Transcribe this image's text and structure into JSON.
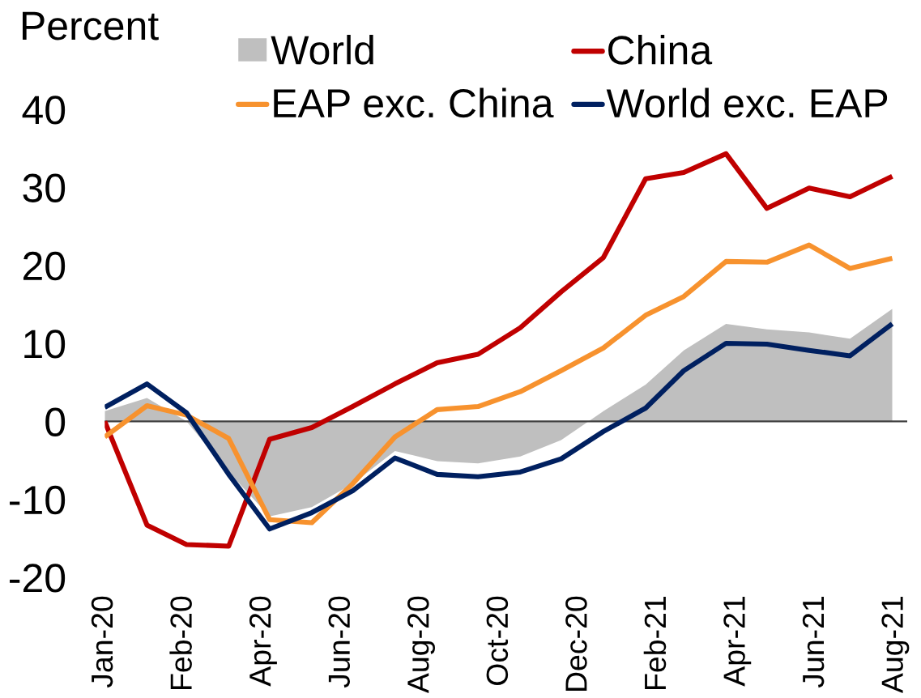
{
  "chart_data": {
    "type": "line",
    "ylabel": "Percent",
    "x": [
      "2020-01",
      "2020-02",
      "2020-03",
      "2020-04",
      "2020-05",
      "2020-06",
      "2020-07",
      "2020-08",
      "2020-09",
      "2020-10",
      "2020-11",
      "2020-12",
      "2021-01",
      "2021-02",
      "2021-03",
      "2021-04",
      "2021-05",
      "2021-06",
      "2021-07",
      "2021-08"
    ],
    "series": [
      {
        "name": "World",
        "type": "area",
        "color": "#bfbfbf",
        "values": [
          1.3,
          3.0,
          0,
          -6.5,
          -12.2,
          -11.0,
          -8.0,
          -3.8,
          -5.1,
          -5.4,
          -4.5,
          -2.4,
          1.3,
          4.7,
          9.1,
          12.5,
          11.8,
          11.4,
          10.6,
          14.4
        ]
      },
      {
        "name": "China",
        "color": "#c00000",
        "values": [
          0,
          -13.3,
          -15.8,
          -16.0,
          -2.3,
          -0.8,
          1.9,
          4.8,
          7.5,
          8.6,
          12.0,
          16.6,
          21.0,
          31.1,
          31.9,
          34.3,
          27.3,
          29.9,
          28.8,
          31.4
        ]
      },
      {
        "name": "EAP exc. China",
        "color": "#f7922e",
        "values": [
          -2.0,
          2.0,
          0.8,
          -2.2,
          -12.6,
          -13.0,
          -8.0,
          -2.0,
          1.5,
          1.9,
          3.8,
          6.5,
          9.4,
          13.6,
          16.0,
          20.5,
          20.4,
          22.6,
          19.6,
          20.9
        ]
      },
      {
        "name": "World exc. EAP",
        "color": "#002060",
        "values": [
          1.8,
          4.8,
          1.1,
          -6.8,
          -13.8,
          -11.7,
          -8.9,
          -4.7,
          -6.8,
          -7.1,
          -6.5,
          -4.8,
          -1.3,
          1.7,
          6.5,
          10.0,
          9.9,
          9.1,
          8.4,
          12.5
        ]
      }
    ],
    "xlim": [
      "2020-01-01",
      "2021-08-12"
    ],
    "xticks": [
      {
        "value": "2020-01-01",
        "label": "Jan-20"
      },
      {
        "value": "2020-02-28",
        "label": "Feb-20"
      },
      {
        "value": "2020-04-26",
        "label": "Apr-20"
      },
      {
        "value": "2020-06-23",
        "label": "Jun-20"
      },
      {
        "value": "2020-08-20",
        "label": "Aug-20"
      },
      {
        "value": "2020-10-17",
        "label": "Oct-20"
      },
      {
        "value": "2020-12-14",
        "label": "Dec-20"
      },
      {
        "value": "2021-02-10",
        "label": "Feb-21"
      },
      {
        "value": "2021-04-09",
        "label": "Apr-21"
      },
      {
        "value": "2021-06-06",
        "label": "Jun-21"
      },
      {
        "value": "2021-08-03",
        "label": "Aug-21"
      }
    ],
    "ylim": [
      -20,
      40
    ],
    "yticks": [
      -20,
      -10,
      0,
      10,
      20,
      30,
      40
    ],
    "ref_lines": [
      {
        "axis": "y",
        "value": 0,
        "color": "#404040"
      }
    ],
    "legend": "top"
  }
}
